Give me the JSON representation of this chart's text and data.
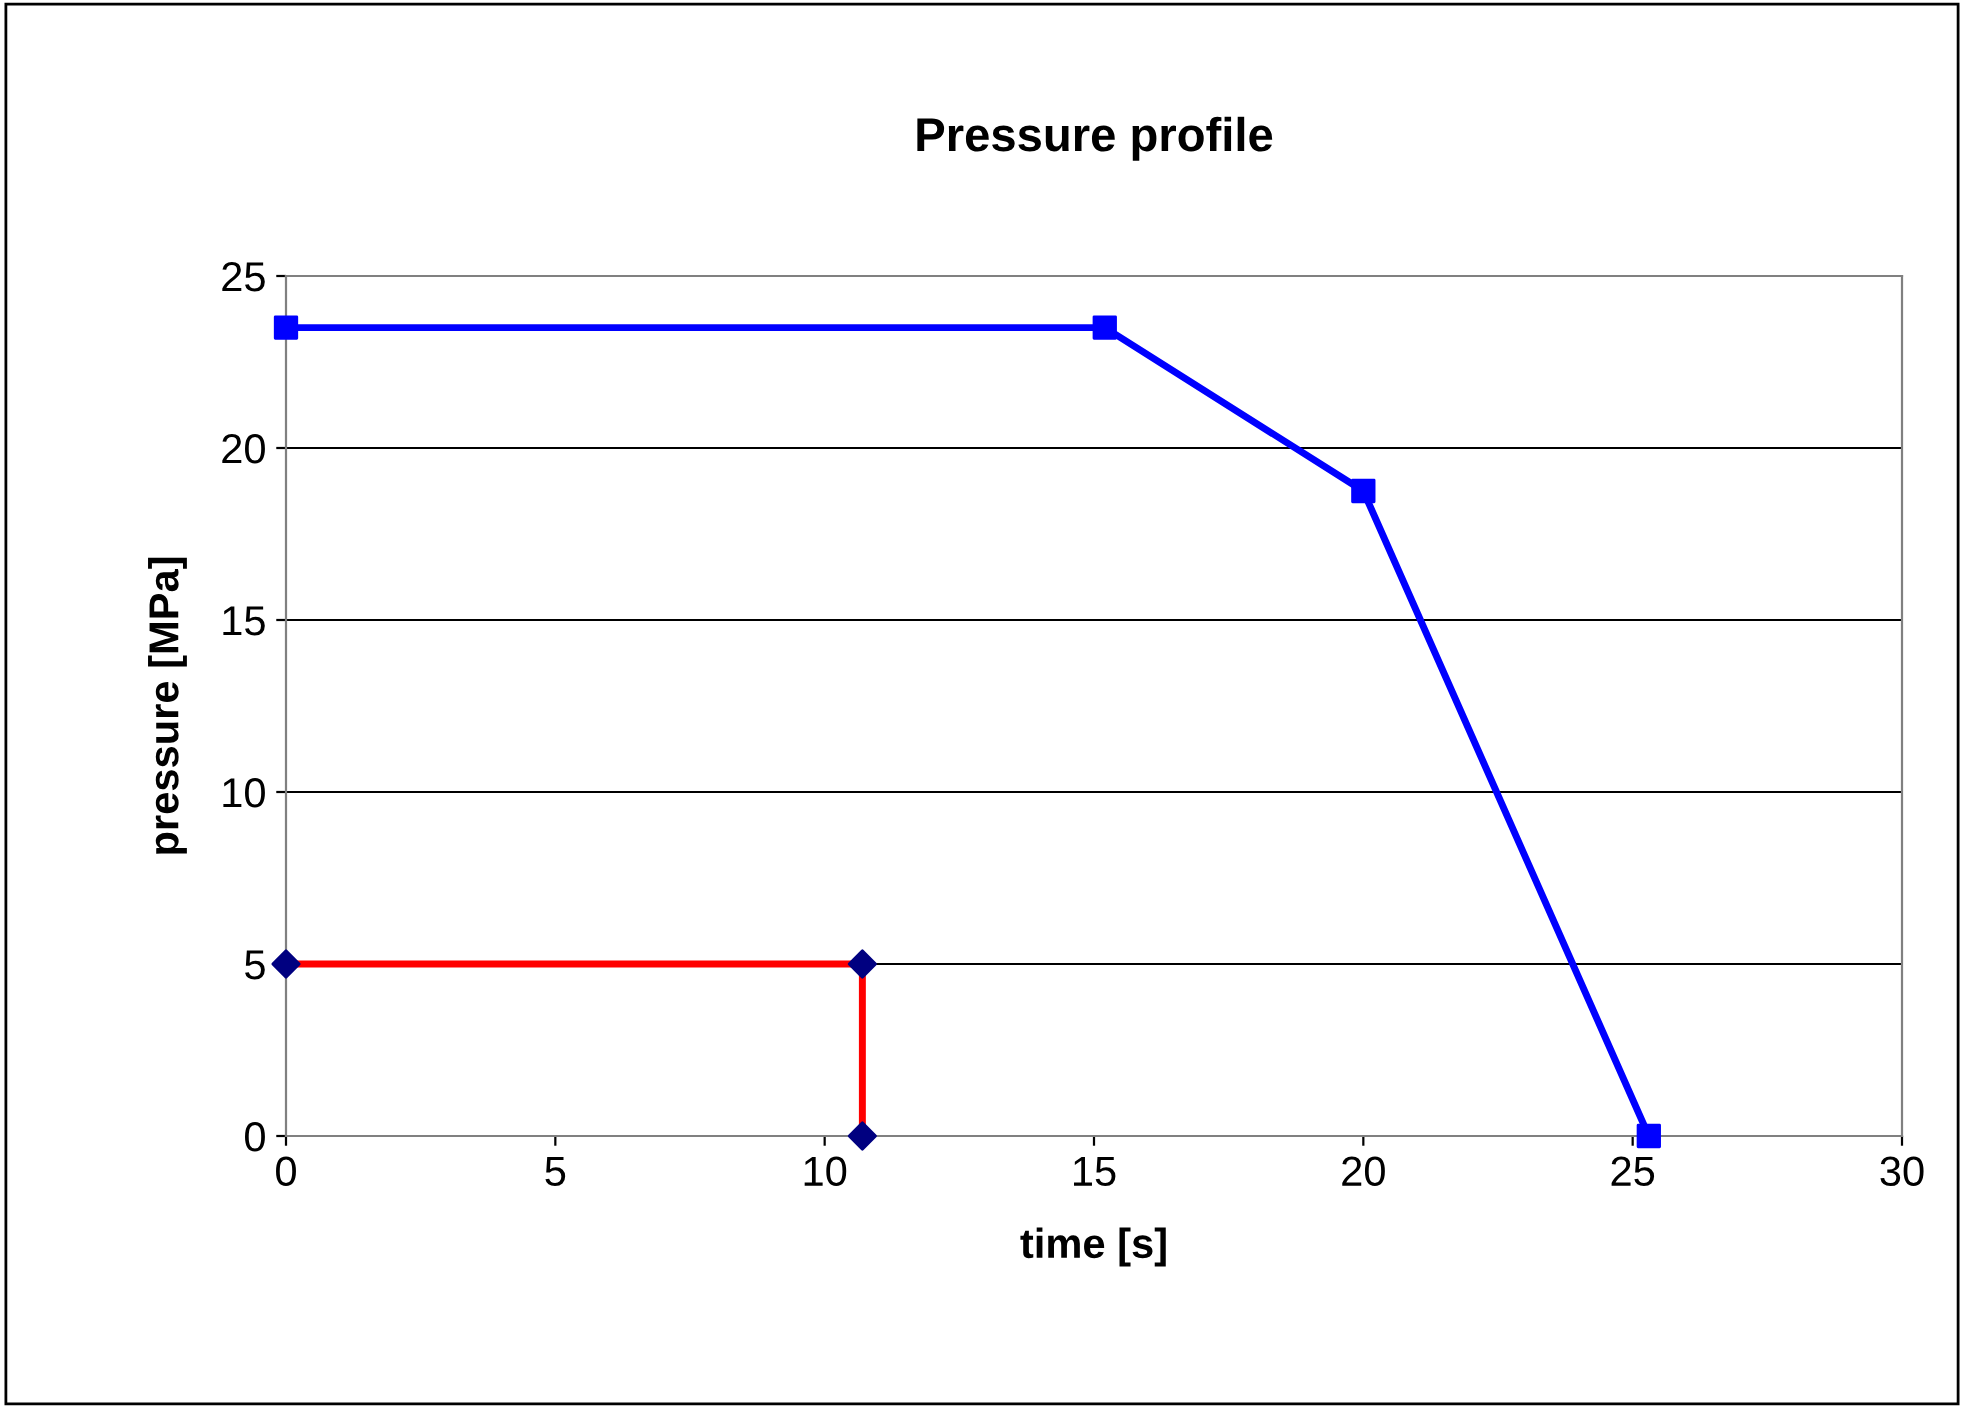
{
  "chart_data": {
    "type": "line",
    "title": "Pressure profile",
    "xlabel": "time [s]",
    "ylabel": "pressure [MPa]",
    "series": [
      {
        "color": "#0000ff",
        "marker": "square",
        "x": [
          0,
          15.2,
          20,
          25.3
        ],
        "values": [
          23.5,
          23.5,
          18.75,
          0
        ]
      },
      {
        "color": "#ff0000",
        "colors": [
          "#000080",
          "#000080",
          "#000080"
        ],
        "marker": "diamond",
        "x": [
          0,
          10.7,
          10.7
        ],
        "values": [
          5,
          5,
          0
        ]
      }
    ],
    "xlim": [
      0,
      30
    ],
    "xticks": [
      0,
      5,
      10,
      15,
      20,
      25,
      30
    ],
    "ylim": [
      0,
      25
    ],
    "yticks": [
      0,
      5,
      10,
      15,
      20,
      25
    ],
    "grid": "y",
    "legend": false
  }
}
